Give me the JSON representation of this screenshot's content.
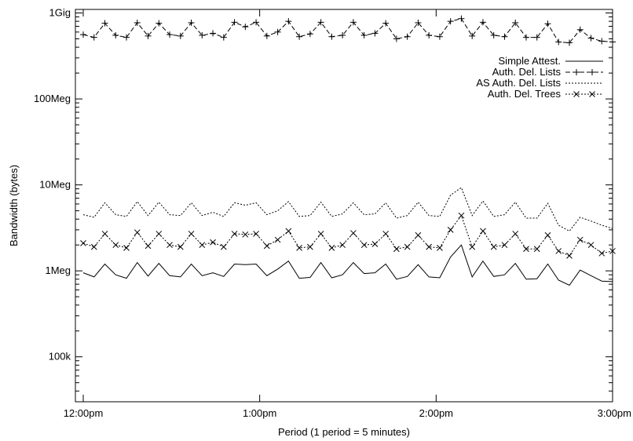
{
  "chart_data": {
    "type": "line",
    "ylabel": "Bandwidth (bytes)",
    "xlabel": "Period (1 period = 5 minutes)",
    "x_ticks": [
      "12:00pm",
      "1:00pm",
      "2:00pm",
      "3:00pm"
    ],
    "y_ticks": [
      "100k",
      "1Meg",
      "10Meg",
      "100Meg",
      "1Gig"
    ],
    "y_scale": "log",
    "x_range": [
      "12:00pm",
      "3:00pm"
    ],
    "y_range": [
      30000,
      1100000000
    ],
    "grid": false,
    "legend_position": "top-right",
    "x": [
      1,
      2,
      3,
      4,
      5,
      6,
      7,
      8,
      9,
      10,
      11,
      12,
      13,
      14,
      15,
      16,
      17,
      18,
      19,
      20,
      21,
      22,
      23,
      24,
      25,
      26,
      27,
      28,
      29,
      30,
      31,
      32,
      33,
      34,
      35,
      36,
      37,
      38,
      39,
      40,
      41,
      42,
      43,
      44,
      45,
      46,
      47,
      48,
      49,
      50
    ],
    "series": [
      {
        "name": "Simple Attest.",
        "color": "#000000",
        "dash": "solid",
        "marker": "none",
        "values": [
          950000,
          850000,
          1200000,
          900000,
          820000,
          1250000,
          870000,
          1220000,
          880000,
          850000,
          1200000,
          880000,
          950000,
          860000,
          1200000,
          1180000,
          1200000,
          880000,
          1050000,
          1300000,
          820000,
          840000,
          1250000,
          830000,
          900000,
          1250000,
          930000,
          950000,
          1200000,
          800000,
          860000,
          1180000,
          850000,
          830000,
          1450000,
          2000000,
          850000,
          1300000,
          860000,
          900000,
          1220000,
          800000,
          810000,
          1200000,
          780000,
          680000,
          1020000,
          880000,
          760000,
          750000
        ]
      },
      {
        "name": "Auth. Del. Lists",
        "color": "#000000",
        "dash": "dashed",
        "marker": "plus",
        "values": [
          560000000,
          520000000,
          760000000,
          550000000,
          520000000,
          770000000,
          540000000,
          760000000,
          560000000,
          540000000,
          770000000,
          550000000,
          580000000,
          520000000,
          780000000,
          690000000,
          780000000,
          540000000,
          600000000,
          800000000,
          530000000,
          570000000,
          780000000,
          530000000,
          550000000,
          780000000,
          550000000,
          580000000,
          760000000,
          500000000,
          530000000,
          770000000,
          550000000,
          530000000,
          800000000,
          860000000,
          540000000,
          780000000,
          550000000,
          530000000,
          770000000,
          520000000,
          520000000,
          750000000,
          460000000,
          450000000,
          640000000,
          510000000,
          470000000,
          460000000
        ]
      },
      {
        "name": "AS Auth. Del. Lists",
        "color": "#000000",
        "dash": "dotted",
        "marker": "none",
        "values": [
          4500000,
          4200000,
          6200000,
          4500000,
          4300000,
          6400000,
          4400000,
          6300000,
          4500000,
          4400000,
          6200000,
          4400000,
          4800000,
          4300000,
          6200000,
          5800000,
          6200000,
          4500000,
          5000000,
          6400000,
          4300000,
          4400000,
          6300000,
          4300000,
          4600000,
          6200000,
          4500000,
          4600000,
          6200000,
          4100000,
          4400000,
          6300000,
          4400000,
          4300000,
          7600000,
          9300000,
          4400000,
          6500000,
          4300000,
          4500000,
          6300000,
          4100000,
          4100000,
          6100000,
          3400000,
          2900000,
          4200000,
          3800000,
          3400000,
          3100000
        ]
      },
      {
        "name": "Auth. Del. Trees",
        "color": "#000000",
        "dash": "dotted",
        "marker": "x",
        "values": [
          2100000,
          1900000,
          2700000,
          2000000,
          1850000,
          2800000,
          1950000,
          2700000,
          2000000,
          1900000,
          2700000,
          2000000,
          2150000,
          1900000,
          2700000,
          2650000,
          2700000,
          1950000,
          2300000,
          2900000,
          1850000,
          1900000,
          2700000,
          1850000,
          2000000,
          2750000,
          2000000,
          2050000,
          2700000,
          1800000,
          1900000,
          2600000,
          1900000,
          1850000,
          3000000,
          4400000,
          1900000,
          2900000,
          1900000,
          2000000,
          2700000,
          1800000,
          1800000,
          2600000,
          1700000,
          1500000,
          2300000,
          2000000,
          1600000,
          1700000
        ]
      }
    ]
  }
}
